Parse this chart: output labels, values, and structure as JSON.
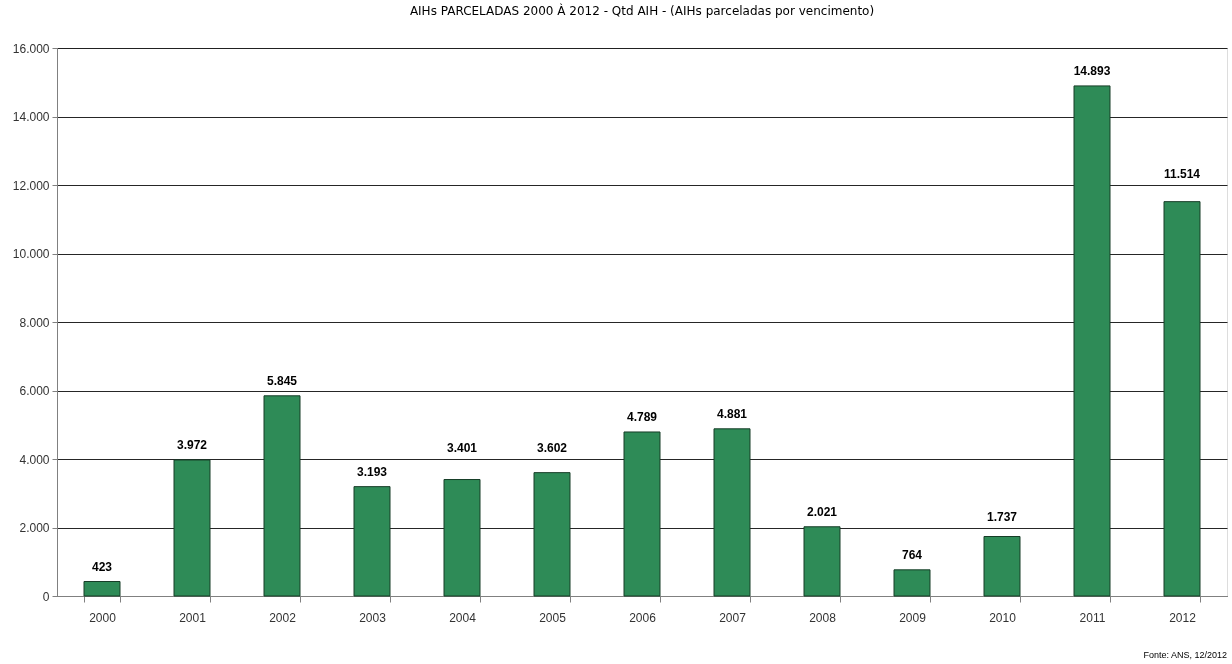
{
  "chart_data": {
    "type": "bar",
    "title": "AIHs PARCELADAS 2000 À 2012 - Qtd AIH - (AIHs parceladas por vencimento)",
    "categories": [
      "2000",
      "2001",
      "2002",
      "2003",
      "2004",
      "2005",
      "2006",
      "2007",
      "2008",
      "2009",
      "2010",
      "2011",
      "2012"
    ],
    "values": [
      423,
      3972,
      5845,
      3193,
      3401,
      3602,
      4789,
      4881,
      2021,
      764,
      1737,
      14893,
      11514
    ],
    "value_labels": [
      "423",
      "3.972",
      "5.845",
      "3.193",
      "3.401",
      "3.602",
      "4.789",
      "4.881",
      "2.021",
      "764",
      "1.737",
      "14.893",
      "11.514"
    ],
    "color": "#2e8b57",
    "ylim": [
      0,
      16000
    ],
    "yticks": [
      0,
      {
        "value": 2000,
        "label": "2.000"
      },
      {
        "value": 4000,
        "label": "4.000"
      },
      {
        "value": 6000,
        "label": "6.000"
      },
      {
        "value": 8000,
        "label": "8.000"
      },
      {
        "value": 10000,
        "label": "10.000"
      },
      {
        "value": 12000,
        "label": "12.000"
      },
      {
        "value": 14000,
        "label": "14.000"
      },
      {
        "value": 16000,
        "label": "16.000"
      }
    ],
    "grid": "y",
    "annotations": [
      "Fonte: ANS, 12/2012"
    ]
  }
}
